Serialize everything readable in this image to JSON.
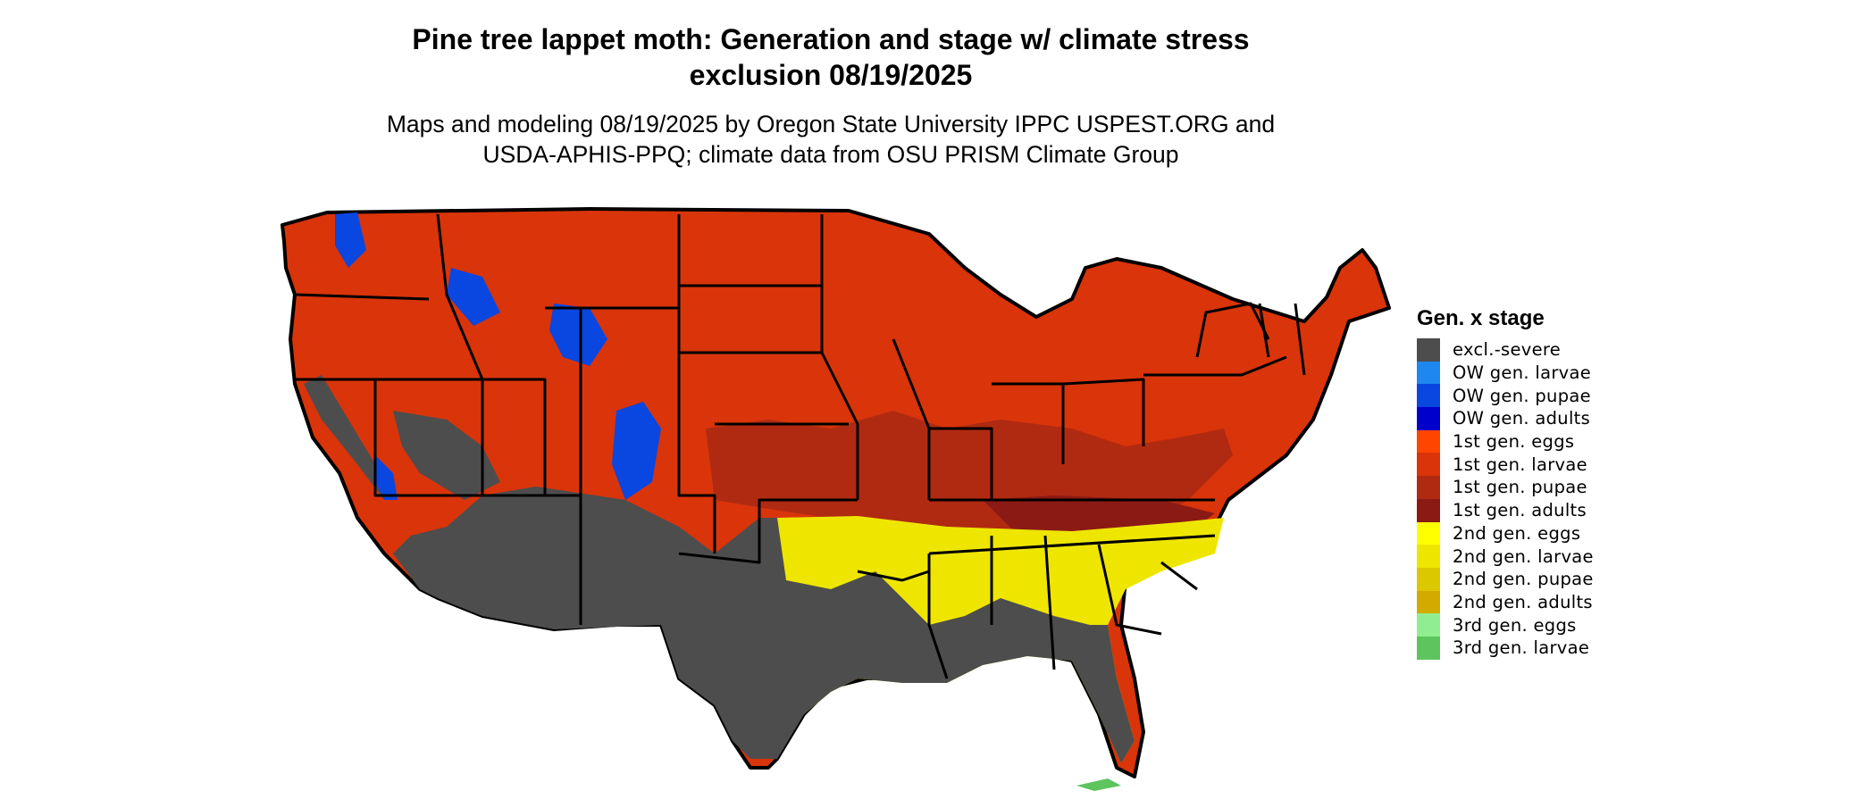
{
  "title": "Pine tree lappet moth: Generation and stage w/ climate stress exclusion 08/19/2025",
  "subtitle": "Maps and modeling 08/19/2025 by Oregon State University IPPC USPEST.ORG and USDA-APHIS-PPQ; climate data from OSU PRISM Climate Group",
  "legend": {
    "title": "Gen. x stage",
    "items": [
      {
        "label": "excl.-severe",
        "color": "#4d4d4d"
      },
      {
        "label": "OW gen. larvae",
        "color": "#1e88f0"
      },
      {
        "label": "OW gen. pupae",
        "color": "#0a46e0"
      },
      {
        "label": "OW gen. adults",
        "color": "#0000cc"
      },
      {
        "label": "1st gen. eggs",
        "color": "#ff4500"
      },
      {
        "label": "1st gen. larvae",
        "color": "#d9340a"
      },
      {
        "label": "1st gen. pupae",
        "color": "#b02a12"
      },
      {
        "label": "1st gen. adults",
        "color": "#8b1a14"
      },
      {
        "label": "2nd gen. eggs",
        "color": "#ffff00"
      },
      {
        "label": "2nd gen. larvae",
        "color": "#eee600"
      },
      {
        "label": "2nd gen. pupae",
        "color": "#dcc800"
      },
      {
        "label": "2nd gen. adults",
        "color": "#d2aa00"
      },
      {
        "label": "3rd gen. eggs",
        "color": "#90ee90"
      },
      {
        "label": "3rd gen. larvae",
        "color": "#5ec45e"
      }
    ]
  }
}
